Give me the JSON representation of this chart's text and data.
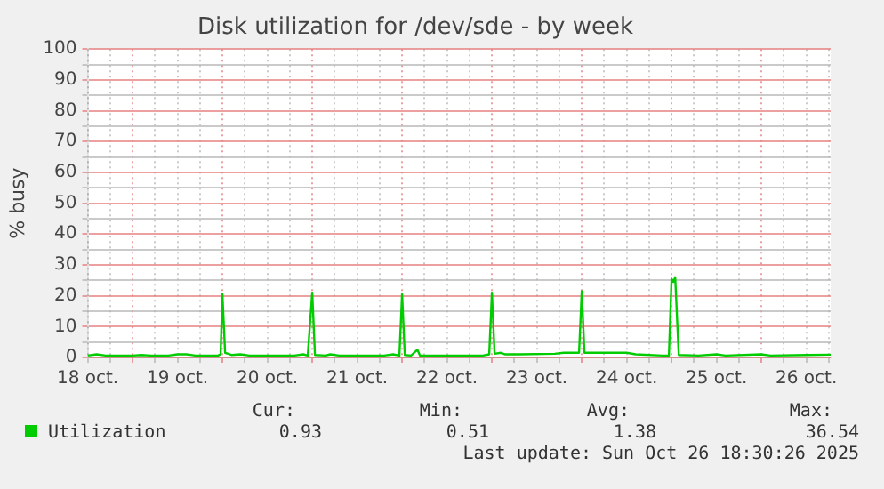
{
  "chart_data": {
    "type": "line",
    "title": "Disk utilization for /dev/sde - by week",
    "ylabel": "% busy",
    "x": [
      "2025-10-18T12:00",
      "2025-10-18T14:24",
      "2025-10-18T16:48",
      "2025-10-19T00:00",
      "2025-10-19T02:24",
      "2025-10-19T04:48",
      "2025-10-19T09:36",
      "2025-10-19T12:00",
      "2025-10-19T14:24",
      "2025-10-19T16:48",
      "2025-10-19T22:48",
      "2025-10-19T23:31",
      "2025-10-20T00:00",
      "2025-10-20T00:43",
      "2025-10-20T02:24",
      "2025-10-20T04:48",
      "2025-10-20T07:12",
      "2025-10-20T19:12",
      "2025-10-20T21:36",
      "2025-10-20T22:48",
      "2025-10-21T00:00",
      "2025-10-21T00:43",
      "2025-10-21T03:36",
      "2025-10-21T04:48",
      "2025-10-21T07:12",
      "2025-10-21T19:12",
      "2025-10-21T21:36",
      "2025-10-21T23:17",
      "2025-10-22T00:00",
      "2025-10-22T00:43",
      "2025-10-22T02:24",
      "2025-10-22T04:05",
      "2025-10-22T04:48",
      "2025-10-22T21:36",
      "2025-10-22T23:17",
      "2025-10-23T00:00",
      "2025-10-23T00:43",
      "2025-10-23T02:24",
      "2025-10-23T03:36",
      "2025-10-23T07:12",
      "2025-10-23T16:48",
      "2025-10-23T19:12",
      "2025-10-23T23:17",
      "2025-10-24T00:00",
      "2025-10-24T00:43",
      "2025-10-24T12:00",
      "2025-10-24T14:24",
      "2025-10-24T21:36",
      "2025-10-24T23:17",
      "2025-10-25T00:00",
      "2025-10-25T00:29",
      "2025-10-25T00:58",
      "2025-10-25T01:55",
      "2025-10-25T07:12",
      "2025-10-25T12:00",
      "2025-10-25T14:24",
      "2025-10-26T00:00",
      "2025-10-26T02:24",
      "2025-10-26T12:00",
      "2025-10-26T18:30"
    ],
    "series": [
      {
        "name": "Utilization",
        "color": "#00cc00",
        "values": [
          0.6,
          1.0,
          0.6,
          0.6,
          0.8,
          0.6,
          0.6,
          1.0,
          1.0,
          0.6,
          0.6,
          1.0,
          20.5,
          1.5,
          0.8,
          1.0,
          0.6,
          0.6,
          1.0,
          0.6,
          21.0,
          0.8,
          0.6,
          1.0,
          0.6,
          0.6,
          1.0,
          0.6,
          20.5,
          0.8,
          0.6,
          2.5,
          0.6,
          0.6,
          1.0,
          21.0,
          1.2,
          1.5,
          1.0,
          1.0,
          1.2,
          1.5,
          1.5,
          21.5,
          1.5,
          1.5,
          1.0,
          0.6,
          0.6,
          25.5,
          24.5,
          26.0,
          0.8,
          0.6,
          1.0,
          0.6,
          1.0,
          0.6,
          0.8,
          0.9
        ]
      }
    ],
    "xlim": [
      "2025-10-18T12:00",
      "2025-10-26T18:30"
    ],
    "xticks": [
      {
        "value": "2025-10-18T12:00",
        "label": "18 oct."
      },
      {
        "value": "2025-10-18T18:00",
        "label": null
      },
      {
        "value": "2025-10-19T00:00",
        "label": null
      },
      {
        "value": "2025-10-19T06:00",
        "label": null
      },
      {
        "value": "2025-10-19T12:00",
        "label": "19 oct."
      },
      {
        "value": "2025-10-19T18:00",
        "label": null
      },
      {
        "value": "2025-10-20T00:00",
        "label": null
      },
      {
        "value": "2025-10-20T06:00",
        "label": null
      },
      {
        "value": "2025-10-20T12:00",
        "label": "20 oct."
      },
      {
        "value": "2025-10-20T18:00",
        "label": null
      },
      {
        "value": "2025-10-21T00:00",
        "label": null
      },
      {
        "value": "2025-10-21T06:00",
        "label": null
      },
      {
        "value": "2025-10-21T12:00",
        "label": "21 oct."
      },
      {
        "value": "2025-10-21T18:00",
        "label": null
      },
      {
        "value": "2025-10-22T00:00",
        "label": null
      },
      {
        "value": "2025-10-22T06:00",
        "label": null
      },
      {
        "value": "2025-10-22T12:00",
        "label": "22 oct."
      },
      {
        "value": "2025-10-22T18:00",
        "label": null
      },
      {
        "value": "2025-10-23T00:00",
        "label": null
      },
      {
        "value": "2025-10-23T06:00",
        "label": null
      },
      {
        "value": "2025-10-23T12:00",
        "label": "23 oct."
      },
      {
        "value": "2025-10-23T18:00",
        "label": null
      },
      {
        "value": "2025-10-24T00:00",
        "label": null
      },
      {
        "value": "2025-10-24T06:00",
        "label": null
      },
      {
        "value": "2025-10-24T12:00",
        "label": "24 oct."
      },
      {
        "value": "2025-10-24T18:00",
        "label": null
      },
      {
        "value": "2025-10-25T00:00",
        "label": null
      },
      {
        "value": "2025-10-25T06:00",
        "label": null
      },
      {
        "value": "2025-10-25T12:00",
        "label": "25 oct."
      },
      {
        "value": "2025-10-25T18:00",
        "label": null
      },
      {
        "value": "2025-10-26T00:00",
        "label": null
      },
      {
        "value": "2025-10-26T06:00",
        "label": null
      },
      {
        "value": "2025-10-26T12:00",
        "label": "26 oct."
      },
      {
        "value": "2025-10-26T18:00",
        "label": null
      }
    ],
    "ylim": [
      0,
      100
    ],
    "yticks": [
      0,
      {
        "value": 5,
        "label": null
      },
      10,
      {
        "value": 15,
        "label": null
      },
      20,
      {
        "value": 25,
        "label": null
      },
      30,
      {
        "value": 35,
        "label": null
      },
      40,
      {
        "value": 45,
        "label": null
      },
      50,
      {
        "value": 55,
        "label": null
      },
      60,
      {
        "value": 65,
        "label": null
      },
      70,
      {
        "value": 75,
        "label": null
      },
      80,
      {
        "value": 85,
        "label": null
      },
      90,
      {
        "value": 95,
        "label": null
      },
      100
    ],
    "grid": true,
    "legend": "bottom left",
    "marker": "none",
    "annotations": [
      "Cur:",
      "Min:",
      "Avg:",
      "Max:",
      "0.93",
      "0.51",
      "1.38",
      "36.54",
      "Last update: Sun Oct 26 18:30:26 2025"
    ]
  }
}
